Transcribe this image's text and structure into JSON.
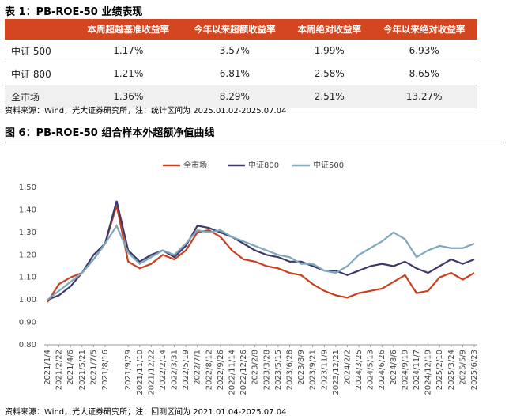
{
  "table": {
    "title": "表 1：PB-ROE-50 业绩表现",
    "headers": [
      "本周超越基准收益率",
      "今年以来超额收益率",
      "本周绝对收益率",
      "今年以来绝对收益率"
    ],
    "rows": [
      [
        "中证 500",
        "1.17%",
        "3.57%",
        "1.99%",
        "6.93%"
      ],
      [
        "中证 800",
        "1.21%",
        "6.81%",
        "2.58%",
        "8.65%"
      ],
      [
        "全市场",
        "1.36%",
        "8.29%",
        "2.51%",
        "13.27%"
      ]
    ],
    "source": "资料来源：Wind，光大证券研究所，注：统计区间为 2025.01.02-2025.07.04"
  },
  "chart_data": {
    "type": "line",
    "title": "图 6：PB-ROE-50 组合样本外超额净值曲线",
    "categories": [
      "2021/1/4",
      "2021/2/22",
      "2021/4/6",
      "2021/5/21",
      "2021/7/5",
      "2021/8/16",
      null,
      "2021/9/29",
      "2021/11/10",
      "2021/12/22",
      "2022/2/14",
      "2022/3/31",
      "2022/5/19",
      "2022/7/1",
      "2022/8/12",
      "2022/9/26",
      "2022/11/14",
      "2022/12/26",
      "2023/2/8",
      "2023/3/28",
      "2023/5/15",
      "2023/6/28",
      "2023/8/9",
      "2023/9/21",
      "2023/11/9",
      "2023/12/21",
      "2024/2/2",
      "2024/3/25",
      "2024/5/13",
      "2024/6/26",
      "2024/8/6",
      "2024/9/19",
      "2024/11/7",
      "2024/12/19",
      "2025/2/10",
      "2025/3/24",
      "2025/5/9",
      "2025/6/23"
    ],
    "series": [
      {
        "name": "全市场",
        "color": "#c8401e",
        "values": [
          0.99,
          1.07,
          1.1,
          1.12,
          1.18,
          1.25,
          1.42,
          1.17,
          1.14,
          1.16,
          1.2,
          1.18,
          1.22,
          1.3,
          1.31,
          1.28,
          1.22,
          1.18,
          1.17,
          1.15,
          1.14,
          1.12,
          1.11,
          1.07,
          1.04,
          1.02,
          1.01,
          1.03,
          1.04,
          1.05,
          1.08,
          1.11,
          1.03,
          1.04,
          1.1,
          1.12,
          1.09,
          1.12
        ]
      },
      {
        "name": "中证800",
        "color": "#3b3a6a",
        "values": [
          1.0,
          1.02,
          1.06,
          1.12,
          1.2,
          1.25,
          1.44,
          1.22,
          1.17,
          1.2,
          1.22,
          1.19,
          1.24,
          1.33,
          1.32,
          1.3,
          1.28,
          1.25,
          1.22,
          1.2,
          1.19,
          1.17,
          1.17,
          1.15,
          1.13,
          1.13,
          1.11,
          1.13,
          1.15,
          1.16,
          1.15,
          1.17,
          1.14,
          1.12,
          1.15,
          1.18,
          1.16,
          1.18
        ]
      },
      {
        "name": "中证500",
        "color": "#7fa8bd",
        "values": [
          1.0,
          1.04,
          1.08,
          1.12,
          1.18,
          1.25,
          1.33,
          1.21,
          1.16,
          1.19,
          1.22,
          1.2,
          1.25,
          1.31,
          1.3,
          1.31,
          1.28,
          1.26,
          1.24,
          1.22,
          1.2,
          1.19,
          1.16,
          1.16,
          1.13,
          1.12,
          1.15,
          1.2,
          1.23,
          1.26,
          1.3,
          1.27,
          1.19,
          1.22,
          1.24,
          1.23,
          1.23,
          1.25
        ]
      }
    ],
    "ylim": [
      0.8,
      1.5
    ],
    "yticks": [
      {
        "value": 0.8,
        "label": "0.80"
      },
      {
        "value": 0.9,
        "label": "0.90"
      },
      {
        "value": 1.0,
        "label": "1.00"
      },
      {
        "value": 1.1,
        "label": "1.10"
      },
      {
        "value": 1.2,
        "label": "1.20"
      },
      {
        "value": 1.3,
        "label": "1.30"
      },
      {
        "value": 1.4,
        "label": "1.40"
      },
      {
        "value": 1.5,
        "label": "1.50"
      }
    ],
    "legend": "top",
    "source": "资料来源：Wind，光大证券研究所；注：回测区间为 2021.01.04-2025.07.04"
  }
}
